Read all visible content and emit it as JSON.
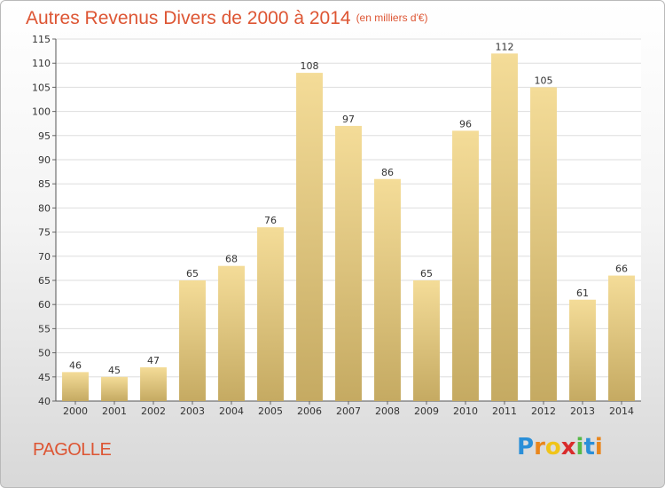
{
  "header": {
    "title": "Autres Revenus Divers de 2000 à 2014",
    "subtitle": "(en milliers d'€)"
  },
  "footer": {
    "place": "PAGOLLE",
    "logo": "Proxiti"
  },
  "colors": {
    "title": "#dd5533",
    "bar_light": "#f4dc98",
    "bar_dark": "#c5aa62",
    "grid": "#dedede"
  },
  "chart_data": {
    "type": "bar",
    "title": "Autres Revenus Divers de 2000 à 2014",
    "subtitle": "(en milliers d'€)",
    "categories": [
      "2000",
      "2001",
      "2002",
      "2003",
      "2004",
      "2005",
      "2006",
      "2007",
      "2008",
      "2009",
      "2010",
      "2011",
      "2012",
      "2013",
      "2014"
    ],
    "values": [
      46,
      45,
      47,
      65,
      68,
      76,
      108,
      97,
      86,
      65,
      96,
      112,
      105,
      61,
      66
    ],
    "ylim": [
      40,
      115
    ],
    "yticks": [
      40,
      45,
      50,
      55,
      60,
      65,
      70,
      75,
      80,
      85,
      90,
      95,
      100,
      105,
      110,
      115
    ],
    "grid": true,
    "data_labels": true
  }
}
